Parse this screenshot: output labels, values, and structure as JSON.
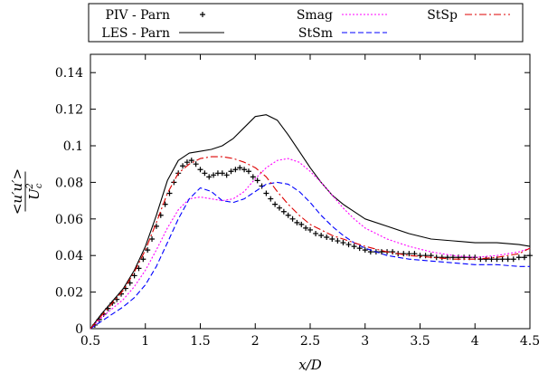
{
  "chart_data": {
    "type": "line",
    "xlabel": "x/D",
    "ylabel": "<u'u'>/U_c^2",
    "ylabel_parts": {
      "numerator": "<u′u′>",
      "denominator": "U",
      "sub": "c",
      "sup": "2"
    },
    "xlim": [
      0.5,
      4.5
    ],
    "ylim": [
      0,
      0.15
    ],
    "x_ticks": [
      "0.5",
      "1",
      "1.5",
      "2",
      "2.5",
      "3",
      "3.5",
      "4",
      "4.5"
    ],
    "y_ticks": [
      "0",
      "0.02",
      "0.04",
      "0.06",
      "0.08",
      "0.1",
      "0.12",
      "0.14"
    ],
    "legend_placement": "top, outside the plot",
    "grid": false,
    "series": [
      {
        "name": "PIV - Parn",
        "style": "points",
        "marker": "plus",
        "color": "#000000",
        "x": [
          0.54,
          0.58,
          0.62,
          0.66,
          0.7,
          0.74,
          0.78,
          0.82,
          0.86,
          0.9,
          0.94,
          0.98,
          1.02,
          1.06,
          1.1,
          1.14,
          1.18,
          1.22,
          1.26,
          1.3,
          1.34,
          1.38,
          1.42,
          1.46,
          1.5,
          1.54,
          1.58,
          1.62,
          1.66,
          1.7,
          1.74,
          1.78,
          1.82,
          1.86,
          1.9,
          1.94,
          1.98,
          2.02,
          2.06,
          2.1,
          2.14,
          2.18,
          2.22,
          2.26,
          2.3,
          2.34,
          2.38,
          2.42,
          2.46,
          2.5,
          2.55,
          2.6,
          2.65,
          2.7,
          2.75,
          2.8,
          2.85,
          2.9,
          2.95,
          3.0,
          3.05,
          3.1,
          3.15,
          3.2,
          3.25,
          3.3,
          3.35,
          3.4,
          3.45,
          3.5,
          3.55,
          3.6,
          3.65,
          3.7,
          3.75,
          3.8,
          3.85,
          3.9,
          3.95,
          4.0,
          4.05,
          4.1,
          4.15,
          4.2,
          4.25,
          4.3,
          4.35,
          4.4,
          4.45,
          4.5
        ],
        "y": [
          0.002,
          0.005,
          0.008,
          0.011,
          0.014,
          0.016,
          0.019,
          0.022,
          0.025,
          0.029,
          0.033,
          0.038,
          0.043,
          0.049,
          0.056,
          0.062,
          0.068,
          0.074,
          0.08,
          0.085,
          0.089,
          0.091,
          0.092,
          0.09,
          0.087,
          0.085,
          0.083,
          0.084,
          0.085,
          0.085,
          0.084,
          0.086,
          0.087,
          0.088,
          0.087,
          0.086,
          0.083,
          0.081,
          0.078,
          0.074,
          0.071,
          0.068,
          0.066,
          0.064,
          0.062,
          0.06,
          0.058,
          0.057,
          0.055,
          0.054,
          0.052,
          0.051,
          0.05,
          0.049,
          0.048,
          0.047,
          0.046,
          0.045,
          0.044,
          0.043,
          0.042,
          0.042,
          0.042,
          0.042,
          0.042,
          0.041,
          0.041,
          0.041,
          0.041,
          0.04,
          0.04,
          0.04,
          0.039,
          0.039,
          0.039,
          0.039,
          0.039,
          0.039,
          0.039,
          0.039,
          0.038,
          0.038,
          0.038,
          0.038,
          0.038,
          0.038,
          0.038,
          0.039,
          0.039,
          0.04
        ]
      },
      {
        "name": "LES - Parn",
        "style": "solid",
        "color": "#000000",
        "x": [
          0.5,
          0.6,
          0.7,
          0.8,
          0.9,
          1.0,
          1.1,
          1.2,
          1.3,
          1.4,
          1.5,
          1.6,
          1.7,
          1.8,
          1.9,
          2.0,
          2.1,
          2.2,
          2.3,
          2.4,
          2.5,
          2.6,
          2.7,
          2.8,
          2.9,
          3.0,
          3.2,
          3.4,
          3.6,
          3.8,
          4.0,
          4.2,
          4.4,
          4.5
        ],
        "y": [
          0.0,
          0.008,
          0.015,
          0.022,
          0.032,
          0.045,
          0.062,
          0.081,
          0.092,
          0.096,
          0.097,
          0.098,
          0.1,
          0.104,
          0.11,
          0.116,
          0.117,
          0.114,
          0.106,
          0.097,
          0.088,
          0.08,
          0.073,
          0.068,
          0.064,
          0.06,
          0.056,
          0.052,
          0.049,
          0.048,
          0.047,
          0.047,
          0.046,
          0.045
        ]
      },
      {
        "name": "Smag",
        "style": "dotted",
        "color": "#ff00ff",
        "x": [
          0.5,
          0.6,
          0.7,
          0.8,
          0.9,
          1.0,
          1.1,
          1.2,
          1.3,
          1.4,
          1.5,
          1.6,
          1.7,
          1.8,
          1.9,
          2.0,
          2.1,
          2.2,
          2.3,
          2.4,
          2.5,
          2.6,
          2.7,
          2.8,
          2.9,
          3.0,
          3.2,
          3.4,
          3.6,
          3.8,
          4.0,
          4.2,
          4.4,
          4.5
        ],
        "y": [
          0.0,
          0.006,
          0.011,
          0.016,
          0.023,
          0.032,
          0.043,
          0.055,
          0.065,
          0.071,
          0.072,
          0.071,
          0.07,
          0.071,
          0.075,
          0.082,
          0.088,
          0.092,
          0.093,
          0.091,
          0.086,
          0.08,
          0.073,
          0.066,
          0.06,
          0.055,
          0.049,
          0.045,
          0.042,
          0.04,
          0.039,
          0.04,
          0.042,
          0.044
        ]
      },
      {
        "name": "StSm",
        "style": "dashed",
        "color": "#0000ff",
        "x": [
          0.5,
          0.6,
          0.7,
          0.8,
          0.9,
          1.0,
          1.1,
          1.2,
          1.3,
          1.4,
          1.5,
          1.6,
          1.7,
          1.8,
          1.9,
          2.0,
          2.1,
          2.2,
          2.3,
          2.4,
          2.5,
          2.6,
          2.7,
          2.8,
          2.9,
          3.0,
          3.2,
          3.4,
          3.6,
          3.8,
          4.0,
          4.2,
          4.4,
          4.5
        ],
        "y": [
          0.0,
          0.004,
          0.008,
          0.012,
          0.017,
          0.024,
          0.034,
          0.047,
          0.06,
          0.071,
          0.077,
          0.075,
          0.07,
          0.069,
          0.071,
          0.075,
          0.079,
          0.08,
          0.079,
          0.075,
          0.069,
          0.062,
          0.056,
          0.051,
          0.047,
          0.044,
          0.04,
          0.038,
          0.037,
          0.036,
          0.035,
          0.035,
          0.034,
          0.034
        ]
      },
      {
        "name": "StSp",
        "style": "dashdot",
        "color": "#dd0000",
        "x": [
          0.5,
          0.6,
          0.7,
          0.8,
          0.9,
          1.0,
          1.1,
          1.2,
          1.3,
          1.4,
          1.5,
          1.6,
          1.7,
          1.8,
          1.9,
          2.0,
          2.1,
          2.2,
          2.3,
          2.4,
          2.5,
          2.6,
          2.7,
          2.8,
          2.9,
          3.0,
          3.2,
          3.4,
          3.6,
          3.8,
          4.0,
          4.2,
          4.4,
          4.5
        ],
        "y": [
          0.0,
          0.007,
          0.014,
          0.021,
          0.031,
          0.043,
          0.058,
          0.074,
          0.085,
          0.09,
          0.093,
          0.094,
          0.094,
          0.093,
          0.091,
          0.088,
          0.083,
          0.075,
          0.068,
          0.062,
          0.057,
          0.054,
          0.051,
          0.049,
          0.047,
          0.045,
          0.042,
          0.04,
          0.039,
          0.038,
          0.038,
          0.039,
          0.041,
          0.044
        ]
      }
    ]
  }
}
